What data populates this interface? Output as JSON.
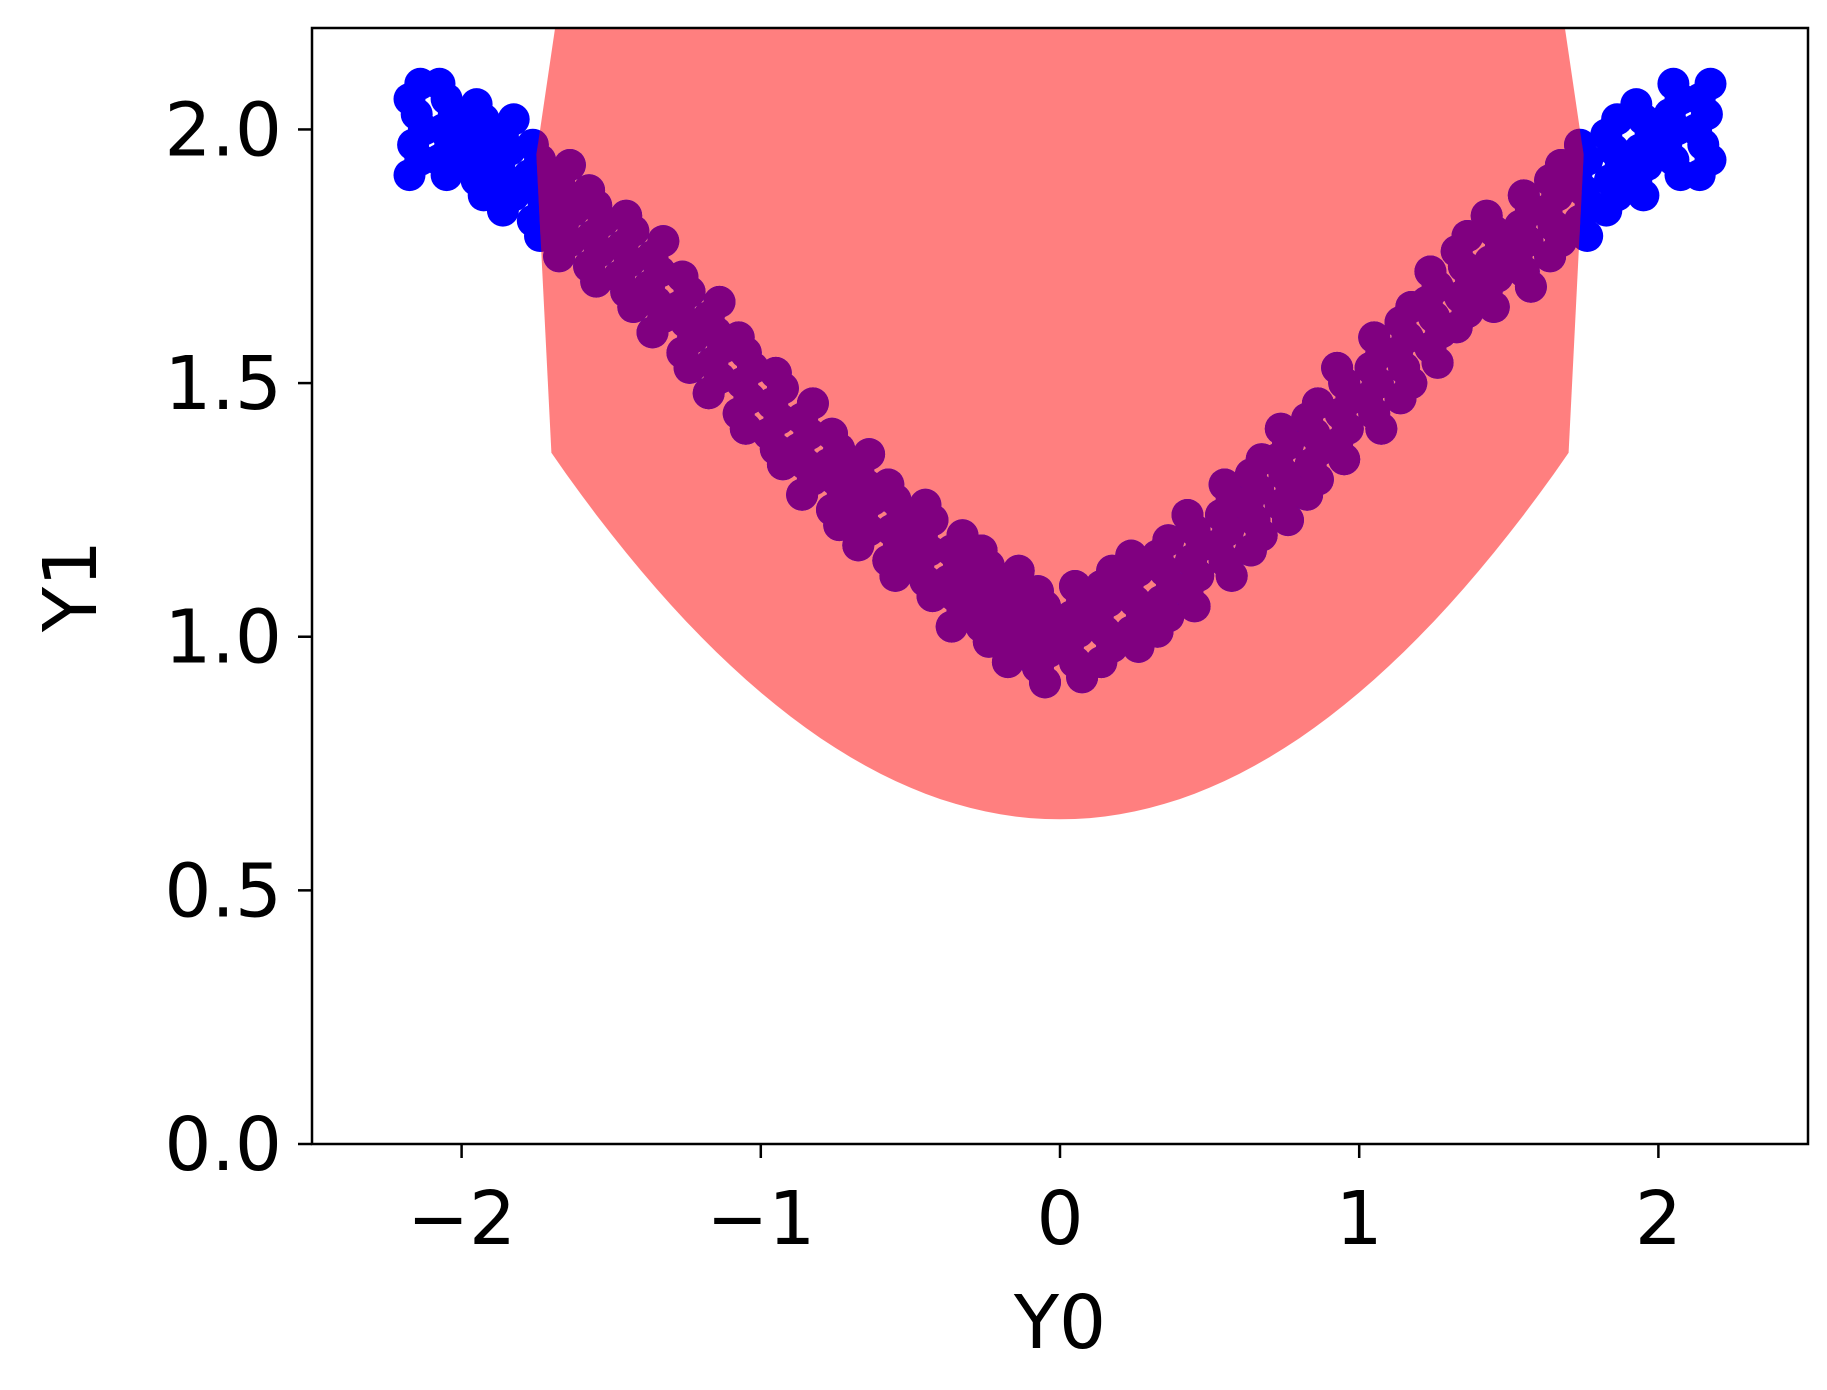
{
  "chart_data": {
    "type": "scatter",
    "xlabel": "Y0",
    "ylabel": "Y1",
    "xlim": [
      -2.5,
      2.5
    ],
    "ylim": [
      0.0,
      2.2
    ],
    "x_ticks": [
      -2,
      -1,
      0,
      1,
      2
    ],
    "x_tick_labels": [
      "−2",
      "−1",
      "0",
      "1",
      "2"
    ],
    "y_ticks": [
      0.0,
      0.5,
      1.0,
      1.5,
      2.0
    ],
    "y_tick_labels": [
      "0.0",
      "0.5",
      "1.0",
      "1.5",
      "2.0"
    ],
    "grid": false,
    "colors": {
      "samples": "#0000ff",
      "region": "#ff0000",
      "region_alpha": 0.5,
      "axes": "#000000"
    },
    "series": [
      {
        "color": "#ff0000",
        "alpha": 0.5,
        "marker": "large-circle",
        "curve": "y = 0.25*x^2 + 1.0 (wide band, roughly 0.63 to above 2.2)",
        "x": [
          -1.7,
          -1.6,
          -1.5,
          -1.4,
          -1.3,
          -1.2,
          -1.1,
          -1.0,
          -0.9,
          -0.8,
          -0.7,
          -0.6,
          -0.5,
          -0.4,
          -0.3,
          -0.2,
          -0.1,
          0.0,
          0.1,
          0.2,
          0.3,
          0.4,
          0.5,
          0.6,
          0.7,
          0.8,
          0.9,
          1.0,
          1.1,
          1.2,
          1.3,
          1.4,
          1.5,
          1.6,
          1.7
        ],
        "y": [
          1.72,
          1.64,
          1.56,
          1.49,
          1.42,
          1.36,
          1.3,
          1.25,
          1.2,
          1.16,
          1.12,
          1.09,
          1.06,
          1.04,
          1.02,
          1.01,
          1.0,
          1.0,
          1.0,
          1.01,
          1.02,
          1.04,
          1.06,
          1.09,
          1.12,
          1.16,
          1.2,
          1.25,
          1.3,
          1.36,
          1.42,
          1.49,
          1.56,
          1.64,
          1.72
        ]
      },
      {
        "color": "#0000ff",
        "marker": "circle",
        "curve": "y = 0.25*x^2 + 1.0 with noise",
        "x": [
          -2.15,
          -2.05,
          -1.95,
          -1.85,
          -1.75,
          -1.65,
          -1.55,
          -1.45,
          -1.35,
          -1.25,
          -1.15,
          -1.05,
          -0.95,
          -0.85,
          -0.75,
          -0.65,
          -0.55,
          -0.45,
          -0.35,
          -0.25,
          -0.15,
          -0.05,
          0.05,
          0.15,
          0.25,
          0.35,
          0.45,
          0.55,
          0.65,
          0.75,
          0.85,
          0.95,
          1.05,
          1.15,
          1.25,
          1.35,
          1.45,
          1.55,
          1.65,
          1.75,
          1.85,
          1.95,
          2.05,
          2.15
        ],
        "y": [
          2.0,
          2.0,
          1.96,
          1.93,
          1.88,
          1.84,
          1.79,
          1.74,
          1.69,
          1.62,
          1.57,
          1.5,
          1.43,
          1.37,
          1.31,
          1.27,
          1.21,
          1.17,
          1.11,
          1.08,
          1.04,
          1.0,
          1.01,
          1.04,
          1.07,
          1.1,
          1.15,
          1.21,
          1.26,
          1.32,
          1.37,
          1.44,
          1.5,
          1.56,
          1.63,
          1.7,
          1.74,
          1.78,
          1.84,
          1.88,
          1.93,
          1.96,
          2.0,
          2.0
        ]
      }
    ]
  }
}
